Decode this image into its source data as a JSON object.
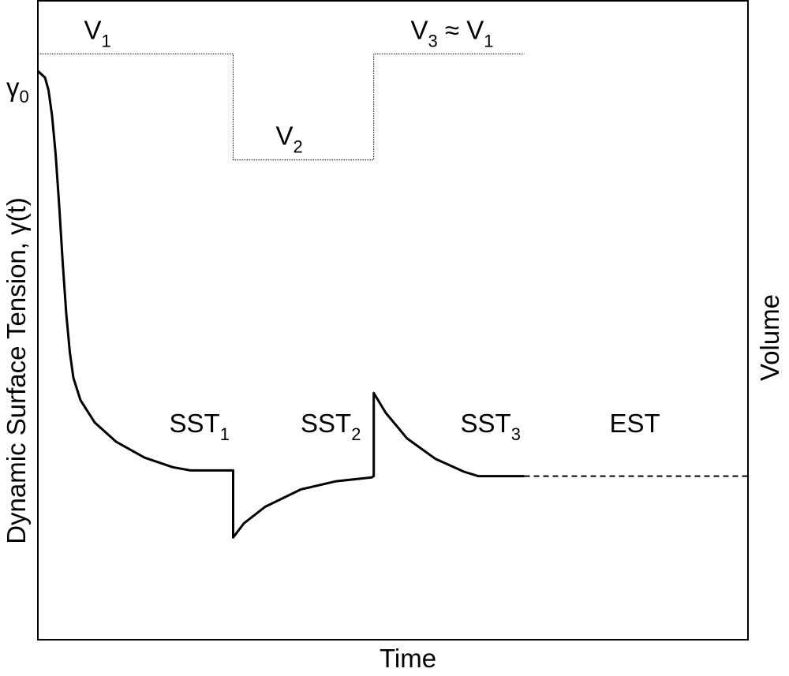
{
  "chart_data": {
    "type": "line",
    "xlabel": "Time",
    "ylabel": "Dynamic Surface Tension, γ(t)",
    "ylabel_right": "Volume",
    "y0_label": {
      "base": "γ",
      "sub": "0"
    },
    "xlim": [
      0,
      1
    ],
    "ylim": [
      0,
      1
    ],
    "grid": false,
    "legend": "none",
    "colors": {
      "axes": "#000000",
      "line": "#000000",
      "background": "#ffffff"
    },
    "series": [
      {
        "name": "γ(t)",
        "style": "solid",
        "points": [
          [
            0.0,
            0.89
          ],
          [
            0.01,
            0.88
          ],
          [
            0.015,
            0.86
          ],
          [
            0.02,
            0.82
          ],
          [
            0.025,
            0.76
          ],
          [
            0.03,
            0.68
          ],
          [
            0.035,
            0.59
          ],
          [
            0.04,
            0.51
          ],
          [
            0.045,
            0.45
          ],
          [
            0.05,
            0.41
          ],
          [
            0.06,
            0.375
          ],
          [
            0.08,
            0.34
          ],
          [
            0.11,
            0.31
          ],
          [
            0.15,
            0.285
          ],
          [
            0.19,
            0.27
          ],
          [
            0.215,
            0.265
          ],
          [
            0.275,
            0.265
          ],
          [
            0.275,
            0.16
          ],
          [
            0.29,
            0.182
          ],
          [
            0.32,
            0.208
          ],
          [
            0.37,
            0.235
          ],
          [
            0.42,
            0.248
          ],
          [
            0.47,
            0.254
          ],
          [
            0.473,
            0.256
          ],
          [
            0.473,
            0.386
          ],
          [
            0.49,
            0.355
          ],
          [
            0.52,
            0.315
          ],
          [
            0.56,
            0.283
          ],
          [
            0.6,
            0.263
          ],
          [
            0.62,
            0.256
          ],
          [
            0.685,
            0.256
          ]
        ]
      },
      {
        "name": "EST",
        "style": "dashed",
        "points": [
          [
            0.685,
            0.256
          ],
          [
            1.0,
            0.256
          ]
        ]
      },
      {
        "name": "Volume",
        "style": "dotted",
        "points": [
          [
            0.0,
            0.917
          ],
          [
            0.275,
            0.917
          ],
          [
            0.275,
            0.751
          ],
          [
            0.473,
            0.751
          ],
          [
            0.473,
            0.917
          ],
          [
            0.685,
            0.917
          ]
        ]
      }
    ],
    "annotations": [
      {
        "id": "v1",
        "parts": [
          {
            "t": "V"
          },
          {
            "t": "1",
            "sub": true
          }
        ],
        "x": 0.065,
        "y": 0.94
      },
      {
        "id": "v2",
        "parts": [
          {
            "t": "V"
          },
          {
            "t": "2",
            "sub": true
          }
        ],
        "x": 0.335,
        "y": 0.775
      },
      {
        "id": "v3",
        "parts": [
          {
            "t": "V"
          },
          {
            "t": "3",
            "sub": true
          },
          {
            "t": " ≈ V"
          },
          {
            "t": "1",
            "sub": true
          }
        ],
        "x": 0.525,
        "y": 0.94
      },
      {
        "id": "sst1",
        "parts": [
          {
            "t": "SST"
          },
          {
            "t": "1",
            "sub": true
          }
        ],
        "x": 0.185,
        "y": 0.325
      },
      {
        "id": "sst2",
        "parts": [
          {
            "t": "SST"
          },
          {
            "t": "2",
            "sub": true
          }
        ],
        "x": 0.37,
        "y": 0.325
      },
      {
        "id": "sst3",
        "parts": [
          {
            "t": "SST"
          },
          {
            "t": "3",
            "sub": true
          }
        ],
        "x": 0.595,
        "y": 0.325
      },
      {
        "id": "est",
        "parts": [
          {
            "t": "EST"
          }
        ],
        "x": 0.805,
        "y": 0.325
      }
    ]
  }
}
